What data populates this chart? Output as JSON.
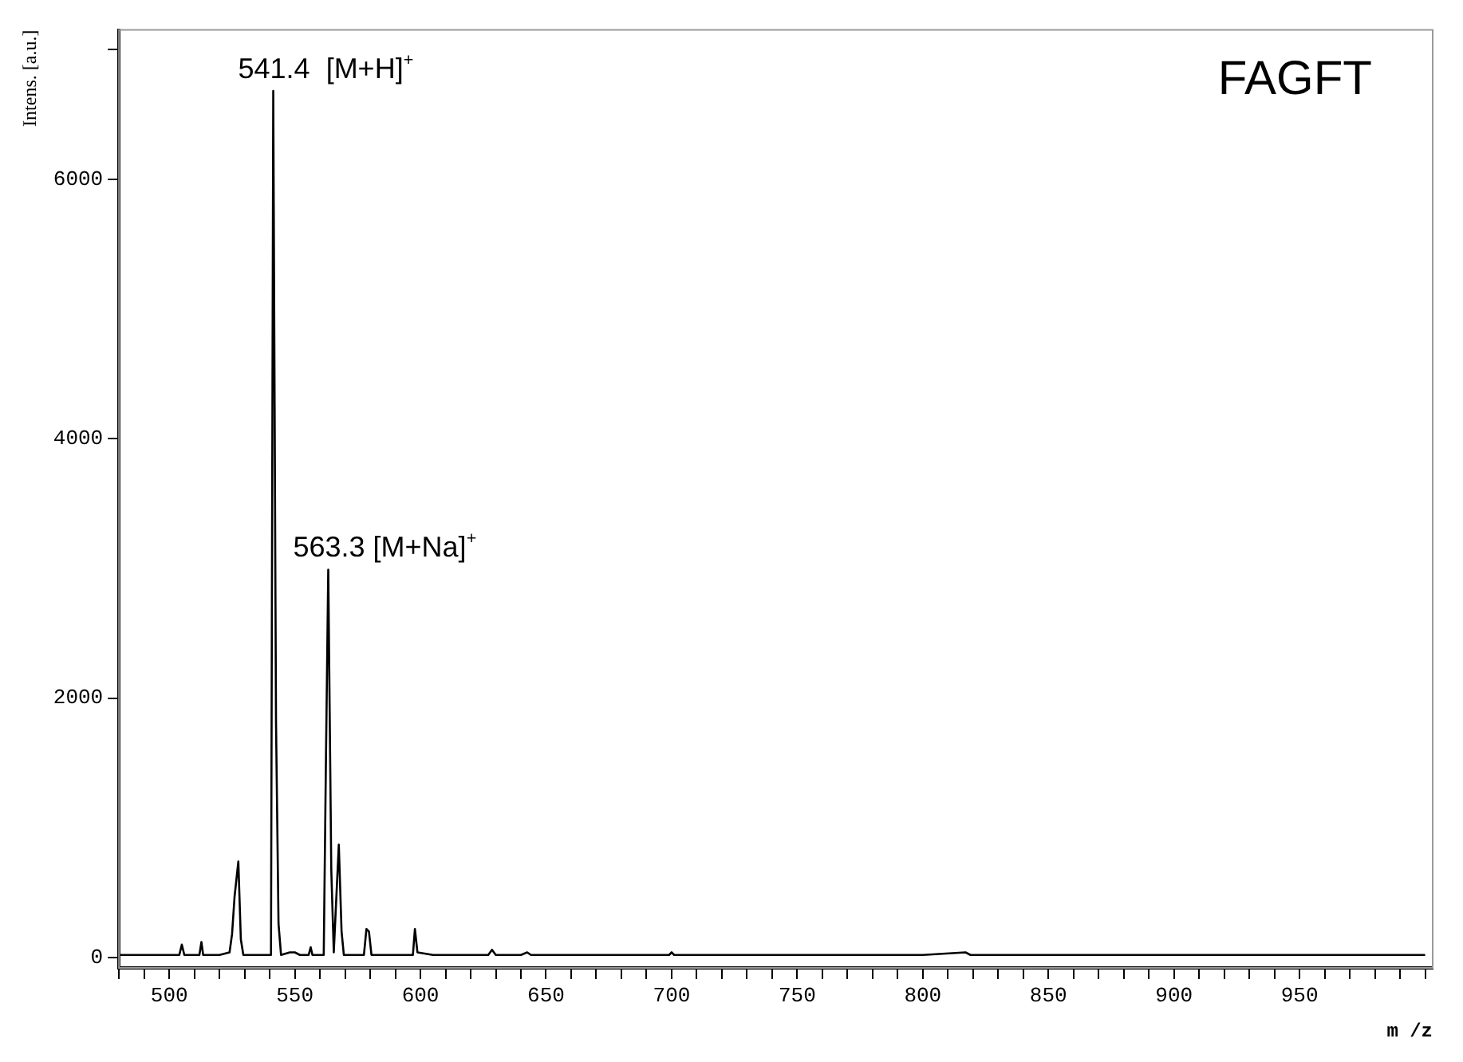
{
  "chart_data": {
    "type": "line",
    "xlabel": "m /z",
    "ylabel": "Intens. [a.u.]",
    "series": [
      {
        "color": "#000000",
        "x": [
          480,
          490,
          495,
          500,
          504,
          505,
          506,
          510,
          512,
          512.8,
          513.5,
          520,
          524,
          525,
          526,
          527.5,
          528.5,
          529.5,
          535,
          540.5,
          541.4,
          542.5,
          543.5,
          544.5,
          548,
          550,
          552,
          555.5,
          556.3,
          557,
          561.5,
          562.4,
          563.3,
          564.5,
          565.5,
          567.5,
          568.6,
          569.5,
          577.5,
          578.5,
          579.5,
          580.5,
          590,
          597,
          597.8,
          598.8,
          605,
          612,
          620,
          627,
          628.5,
          630,
          640,
          642.5,
          644,
          660,
          680,
          699,
          700,
          701,
          720,
          740,
          755,
          757,
          780,
          800,
          817,
          819,
          840,
          860,
          870,
          880,
          900,
          920,
          940,
          960,
          980,
          1000
        ],
        "values": [
          20,
          20,
          20,
          20,
          20,
          100,
          20,
          20,
          20,
          120,
          20,
          20,
          40,
          180,
          470,
          740,
          140,
          20,
          20,
          20,
          6680,
          1820,
          260,
          20,
          40,
          40,
          20,
          20,
          80,
          20,
          20,
          1560,
          2990,
          680,
          40,
          870,
          200,
          20,
          20,
          220,
          200,
          20,
          20,
          20,
          220,
          40,
          20,
          20,
          20,
          20,
          60,
          20,
          20,
          40,
          20,
          20,
          20,
          20,
          40,
          20,
          20,
          20,
          20,
          20,
          20,
          20,
          40,
          20,
          20,
          20,
          20,
          20,
          20,
          20,
          20,
          20,
          20,
          20
        ]
      }
    ],
    "xlim": [
      480,
      1003
    ],
    "xticks": [
      {
        "value": 480,
        "label": null
      },
      {
        "value": 490,
        "label": null
      },
      500,
      {
        "value": 510,
        "label": null
      },
      {
        "value": 520,
        "label": null
      },
      {
        "value": 530,
        "label": null
      },
      {
        "value": 540,
        "label": null
      },
      550,
      {
        "value": 560,
        "label": null
      },
      {
        "value": 570,
        "label": null
      },
      {
        "value": 580,
        "label": null
      },
      {
        "value": 590,
        "label": null
      },
      600,
      {
        "value": 610,
        "label": null
      },
      {
        "value": 620,
        "label": null
      },
      {
        "value": 630,
        "label": null
      },
      {
        "value": 640,
        "label": null
      },
      650,
      {
        "value": 660,
        "label": null
      },
      {
        "value": 670,
        "label": null
      },
      {
        "value": 680,
        "label": null
      },
      {
        "value": 690,
        "label": null
      },
      700,
      {
        "value": 710,
        "label": null
      },
      {
        "value": 720,
        "label": null
      },
      {
        "value": 730,
        "label": null
      },
      {
        "value": 740,
        "label": null
      },
      750,
      {
        "value": 760,
        "label": null
      },
      {
        "value": 770,
        "label": null
      },
      {
        "value": 780,
        "label": null
      },
      {
        "value": 790,
        "label": null
      },
      800,
      {
        "value": 810,
        "label": null
      },
      {
        "value": 820,
        "label": null
      },
      {
        "value": 830,
        "label": null
      },
      {
        "value": 840,
        "label": null
      },
      850,
      {
        "value": 860,
        "label": null
      },
      {
        "value": 870,
        "label": null
      },
      {
        "value": 880,
        "label": null
      },
      {
        "value": 890,
        "label": null
      },
      900,
      {
        "value": 910,
        "label": null
      },
      {
        "value": 920,
        "label": null
      },
      {
        "value": 930,
        "label": null
      },
      {
        "value": 940,
        "label": null
      },
      950,
      {
        "value": 960,
        "label": null
      },
      {
        "value": 970,
        "label": null
      },
      {
        "value": 980,
        "label": null
      },
      {
        "value": 990,
        "label": null
      },
      {
        "value": 1000,
        "label": null
      }
    ],
    "ylim": [
      -80,
      7150
    ],
    "yticks": [
      0,
      2000,
      4000,
      6000,
      {
        "value": 7000,
        "label": null
      }
    ],
    "grid": false,
    "legend": false,
    "marker": "none",
    "line_style": "solid",
    "annotations": [
      {
        "text": "541.4  [M+H]$^{+}$",
        "x": 541.4,
        "y": 6680
      },
      {
        "text": "563.3 [M+Na]$^{+}$",
        "x": 563.3,
        "y": 2990
      },
      "FAGFT"
    ]
  }
}
